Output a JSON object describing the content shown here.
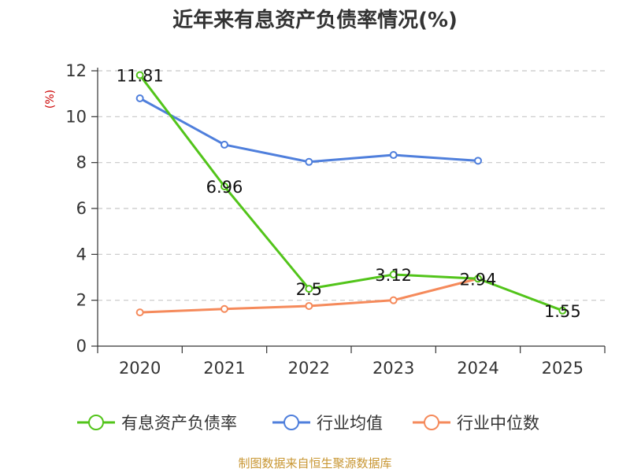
{
  "title": "近年来有息资产负债率情况(%)",
  "source": "制图数据来自恒生聚源数据库",
  "chart_data": {
    "type": "line",
    "title": "近年来有息资产负债率情况(%)",
    "ylabel": "(%)",
    "xlabel": "",
    "categories": [
      "2020",
      "2021",
      "2022",
      "2023",
      "2024",
      "2025"
    ],
    "yticks": [
      "0",
      "2",
      "4",
      "6",
      "8",
      "10",
      "12"
    ],
    "ylim": [
      0,
      12
    ],
    "grid": true,
    "legend_position": "bottom",
    "series": [
      {
        "name": "有息资产负债率",
        "color": "#52c41a",
        "values": [
          11.81,
          6.96,
          2.5,
          3.12,
          2.94,
          1.55
        ],
        "labels": [
          "11.81",
          "6.96",
          "2.5",
          "3.12",
          "2.94",
          "1.55"
        ]
      },
      {
        "name": "行业均值",
        "color": "#4f7fdc",
        "values": [
          10.8,
          8.78,
          8.03,
          8.33,
          8.08,
          null
        ]
      },
      {
        "name": "行业中位数",
        "color": "#f58a5b",
        "values": [
          1.47,
          1.62,
          1.75,
          2.0,
          2.94,
          null
        ]
      }
    ]
  }
}
